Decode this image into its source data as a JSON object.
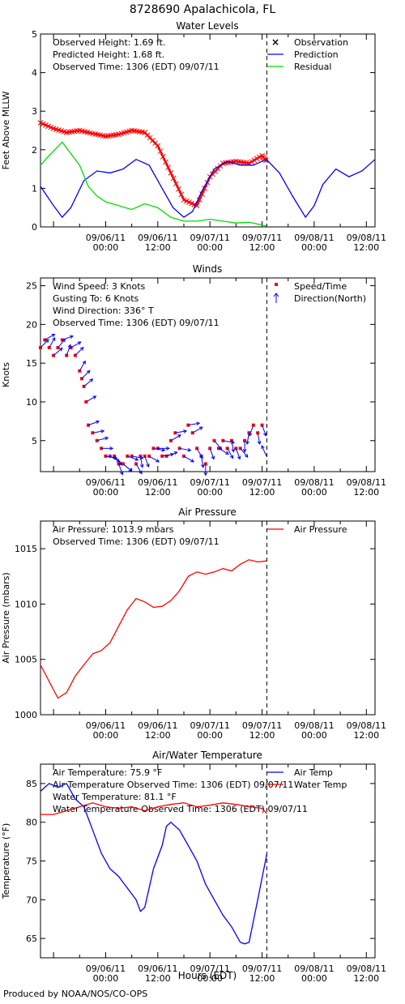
{
  "page": {
    "title": "8728690 Apalachicola, FL",
    "footer": "Produced by NOAA/NOS/CO-OPS",
    "x_axis_title": "Hours (EDT)",
    "x_ticks": [
      {
        "date": "09/06/11",
        "time": "00:00"
      },
      {
        "date": "09/06/11",
        "time": "12:00"
      },
      {
        "date": "09/07/11",
        "time": "00:00"
      },
      {
        "date": "09/07/11",
        "time": "12:00"
      },
      {
        "date": "09/08/11",
        "time": "00:00"
      },
      {
        "date": "09/08/11",
        "time": "12:00"
      }
    ],
    "x_range_hours": [
      -15,
      62
    ],
    "observed_time_hour": 37.1
  },
  "chart_data": [
    {
      "type": "line",
      "title": "Water Levels",
      "ylabel": "Feet Above MLLW",
      "ylim": [
        0,
        5
      ],
      "yticks": [
        0,
        1,
        2,
        3,
        4,
        5
      ],
      "info": [
        "Observed Height:    1.69 ft.",
        "Predicted Height:    1.68 ft.",
        "Observed Time: 1306 (EDT) 09/07/11"
      ],
      "legend": [
        {
          "label": "Observation",
          "color": "#ff0000",
          "symbol": "x"
        },
        {
          "label": "Prediction",
          "color": "#0000ff",
          "symbol": "line"
        },
        {
          "label": "Residual",
          "color": "#00dd00",
          "symbol": "line"
        }
      ],
      "series": [
        {
          "name": "Observation",
          "color": "#ff0000",
          "marker": "x",
          "x": [
            -15,
            -12,
            -9,
            -6,
            -3,
            0,
            3,
            6,
            9,
            12,
            15,
            18,
            21,
            24,
            27,
            30,
            33,
            36,
            37.1
          ],
          "y": [
            2.7,
            2.55,
            2.45,
            2.5,
            2.42,
            2.35,
            2.4,
            2.5,
            2.45,
            2.1,
            1.4,
            0.7,
            0.55,
            1.3,
            1.65,
            1.7,
            1.65,
            1.85,
            1.69
          ]
        },
        {
          "name": "Prediction",
          "color": "#0000ff",
          "x": [
            -15,
            -12,
            -10,
            -8,
            -5,
            -2,
            1,
            4,
            7,
            10,
            13,
            15.5,
            18,
            20,
            22,
            25,
            28,
            31,
            34,
            37,
            40,
            43,
            46,
            48,
            50,
            53,
            56,
            59,
            62
          ],
          "y": [
            1.05,
            0.55,
            0.25,
            0.5,
            1.2,
            1.45,
            1.4,
            1.5,
            1.75,
            1.6,
            1.0,
            0.5,
            0.25,
            0.4,
            0.9,
            1.5,
            1.7,
            1.6,
            1.6,
            1.75,
            1.4,
            0.8,
            0.25,
            0.55,
            1.1,
            1.5,
            1.3,
            1.45,
            1.75
          ]
        },
        {
          "name": "Residual",
          "color": "#00dd00",
          "x": [
            -15,
            -13,
            -10,
            -8,
            -6,
            -4,
            -2,
            0,
            3,
            6,
            9,
            12,
            15,
            18,
            21,
            24,
            27,
            30,
            33,
            36,
            37.1
          ],
          "y": [
            1.6,
            1.85,
            2.2,
            1.9,
            1.6,
            1.05,
            0.8,
            0.65,
            0.55,
            0.45,
            0.6,
            0.5,
            0.25,
            0.15,
            0.15,
            0.2,
            0.15,
            0.1,
            0.12,
            0.05,
            0.02
          ]
        }
      ]
    },
    {
      "type": "scatter",
      "title": "Winds",
      "ylabel": "Knots",
      "ylim": [
        1,
        26
      ],
      "yticks": [
        5,
        10,
        15,
        20,
        25
      ],
      "info": [
        "Wind Speed:  3 Knots",
        "Gusting To:  6 Knots",
        "Wind Direction: 336° T",
        "Observed Time: 1306 (EDT) 09/07/11"
      ],
      "legend": [
        {
          "label": "Speed/Time",
          "color": "#ff0000",
          "symbol": "dot"
        },
        {
          "label": "Direction(North)",
          "color": "#0000ff",
          "symbol": "arrow"
        }
      ],
      "series": [
        {
          "name": "Speed/Time",
          "color": "#ff0000",
          "x": [
            -15,
            -14,
            -13,
            -12,
            -11,
            -10,
            -9,
            -8,
            -7,
            -6,
            -5.5,
            -5,
            -4.5,
            -4,
            -3,
            -2,
            -1,
            0,
            1,
            2,
            3,
            4,
            5,
            6,
            7,
            8,
            9,
            10,
            11,
            12,
            13,
            14,
            15,
            16,
            17,
            18,
            19,
            20,
            21,
            22,
            23,
            24,
            25,
            26,
            27,
            28,
            29,
            30,
            31,
            32,
            33,
            34,
            35,
            36
          ],
          "y": [
            17,
            18,
            17,
            16,
            17,
            18,
            16,
            17,
            16,
            14,
            13,
            12,
            10,
            7,
            6,
            5,
            4,
            3,
            3,
            3,
            2,
            2,
            3,
            3,
            2,
            3,
            3,
            3,
            4,
            4,
            3,
            3,
            5,
            6,
            4,
            3,
            7,
            6,
            4,
            3,
            2,
            4,
            5,
            4,
            5,
            4,
            5,
            4,
            4,
            5,
            6,
            7,
            6,
            7
          ]
        },
        {
          "name": "Direction(North)",
          "color": "#0000ff",
          "x": [
            -15,
            -14,
            -13,
            -12,
            -11,
            -10,
            -9,
            -8,
            -7,
            -6,
            -5.5,
            -5,
            -4.5,
            -4,
            -3,
            -2,
            -1,
            0,
            1,
            2,
            3,
            4,
            5,
            6,
            7,
            8,
            9,
            10,
            11,
            12,
            13,
            14,
            15,
            16,
            17,
            18,
            19,
            20,
            21,
            22,
            23,
            24,
            25,
            26,
            27,
            28,
            29,
            30,
            31,
            32,
            33,
            34,
            35,
            36,
            37
          ],
          "y": [
            17,
            18,
            17,
            16,
            17,
            18,
            16,
            17,
            16,
            14,
            13,
            12,
            10,
            7,
            6,
            5,
            4,
            3,
            3,
            3,
            2,
            2,
            3,
            3,
            2,
            3,
            3,
            3,
            4,
            4,
            3,
            3,
            5,
            6,
            4,
            3,
            7,
            6,
            4,
            3,
            2,
            4,
            5,
            4,
            5,
            4,
            5,
            4,
            4,
            5,
            6,
            7,
            6,
            7,
            3
          ],
          "direction_deg": [
            45,
            60,
            30,
            50,
            40,
            70,
            20,
            60,
            45,
            30,
            45,
            50,
            60,
            70,
            80,
            75,
            90,
            100,
            120,
            140,
            160,
            130,
            110,
            100,
            150,
            170,
            160,
            120,
            100,
            90,
            80,
            70,
            60,
            80,
            100,
            120,
            80,
            60,
            150,
            170,
            180,
            160,
            140,
            120,
            100,
            150,
            170,
            160,
            140,
            180,
            190,
            200,
            170,
            160,
            336
          ]
        }
      ]
    },
    {
      "type": "line",
      "title": "Air Pressure",
      "ylabel": "Air Pressure (mbars)",
      "ylim": [
        1000,
        1017.5
      ],
      "yticks": [
        1000,
        1005,
        1010,
        1015
      ],
      "info": [
        "Air Pressure: 1013.9 mbars",
        "Observed Time: 1306 (EDT) 09/07/11"
      ],
      "legend": [
        {
          "label": "Air Pressure",
          "color": "#ff0000",
          "symbol": "line"
        }
      ],
      "series": [
        {
          "name": "Air Pressure",
          "color": "#ff0000",
          "x": [
            -15,
            -13,
            -11,
            -9,
            -7,
            -5,
            -3,
            -1,
            1,
            3,
            5,
            7,
            9,
            11,
            13,
            15,
            17,
            19,
            21,
            23,
            25,
            27,
            29,
            31,
            33,
            35,
            37.1
          ],
          "y": [
            1004.5,
            1003,
            1001.5,
            1002,
            1003.5,
            1004.5,
            1005.5,
            1005.8,
            1006.5,
            1008,
            1009.5,
            1010.5,
            1010.2,
            1009.7,
            1009.8,
            1010.3,
            1011.2,
            1012.5,
            1012.9,
            1012.7,
            1012.9,
            1013.2,
            1013.0,
            1013.6,
            1014.0,
            1013.8,
            1013.9
          ]
        }
      ]
    },
    {
      "type": "line",
      "title": "Air/Water Temperature",
      "ylabel": "Temperature (°F)",
      "ylim": [
        62.5,
        87.5
      ],
      "yticks": [
        65,
        70,
        75,
        80,
        85
      ],
      "info": [
        "Air Temperature:   75.9 °F",
        "Air Temperature Observed Time: 1306 (EDT) 09/07/11",
        "Water Temperature:   81.1 °F",
        "Water Temperature Observed Time: 1306 (EDT) 09/07/11"
      ],
      "legend": [
        {
          "label": "Air Temp",
          "color": "#0000ff",
          "symbol": "line"
        },
        {
          "label": "Water Temp",
          "color": "#ff0000",
          "symbol": "line"
        }
      ],
      "series": [
        {
          "name": "Air Temp",
          "color": "#0000ff",
          "x": [
            -15,
            -13,
            -11,
            -9,
            -7,
            -5,
            -3,
            -1,
            1,
            3,
            5,
            7,
            8,
            9,
            11,
            13,
            14,
            15,
            17,
            19,
            21,
            23,
            25,
            27,
            29,
            31,
            32,
            33,
            35,
            37.1
          ],
          "y": [
            84,
            85,
            84.5,
            85,
            83,
            82,
            79,
            76,
            74,
            73,
            71.5,
            70,
            68.5,
            69,
            74,
            77,
            79.5,
            80,
            79,
            77,
            75,
            72,
            70,
            68,
            66.5,
            64.5,
            64.3,
            64.5,
            70,
            75.9
          ]
        },
        {
          "name": "Water Temp",
          "color": "#ff0000",
          "x": [
            -15,
            -12,
            -9,
            -6,
            -3,
            0,
            3,
            6,
            9,
            12,
            15,
            18,
            21,
            24,
            27,
            30,
            33,
            36,
            37.1
          ],
          "y": [
            81,
            81,
            81.5,
            82,
            82.5,
            82,
            81.8,
            82,
            81.5,
            82,
            82.3,
            82.5,
            82,
            82.2,
            82.5,
            82.3,
            82,
            81.8,
            81.1
          ]
        }
      ]
    }
  ]
}
